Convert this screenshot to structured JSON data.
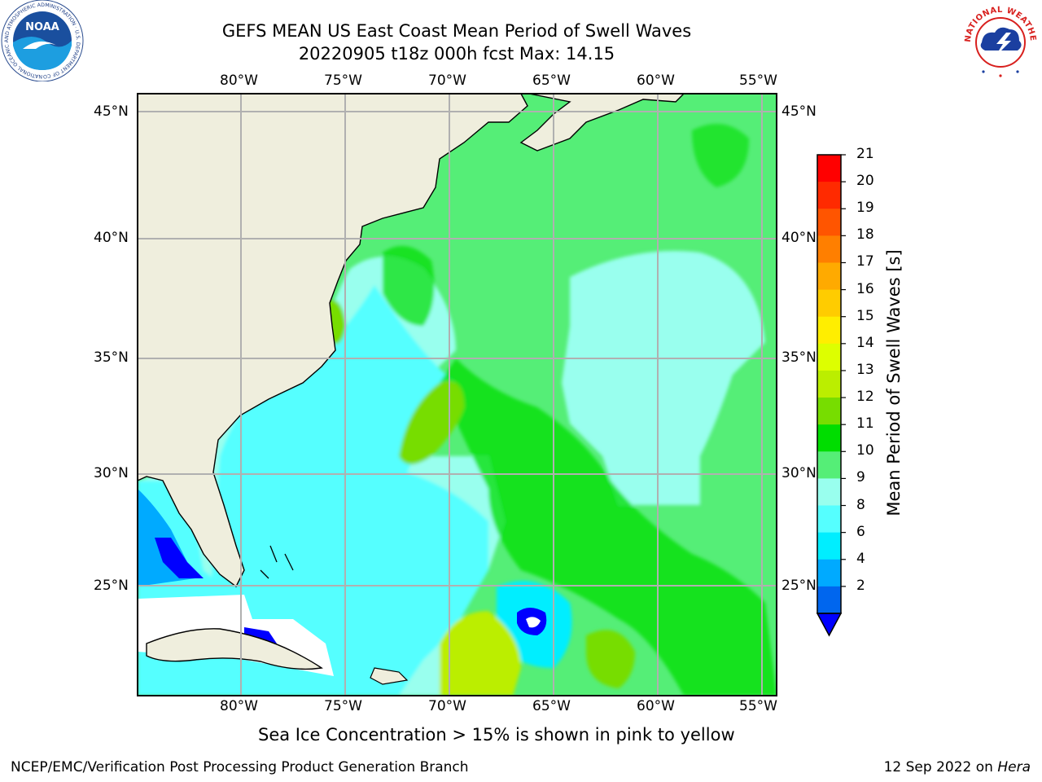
{
  "header": {
    "title_line1": "GEFS MEAN US East Coast Mean Period of Swell Waves",
    "title_line2": "20220905 t18z 000h fcst   Max: 14.15"
  },
  "map": {
    "lon_labels": [
      "80°W",
      "75°W",
      "70°W",
      "65°W",
      "60°W",
      "55°W"
    ],
    "lat_labels": [
      "45°N",
      "40°N",
      "35°N",
      "30°N",
      "25°N"
    ],
    "land_color": "#efeedd",
    "grid_color": "#b0b0b0"
  },
  "colorbar": {
    "title": "Mean Period of Swell Waves [s]",
    "ticks": [
      "21",
      "20",
      "19",
      "18",
      "17",
      "16",
      "15",
      "14",
      "13",
      "12",
      "11",
      "10",
      "9",
      "8",
      "6",
      "4",
      "2"
    ],
    "colors": [
      "#ff0000",
      "#ff2a00",
      "#ff5500",
      "#ff7f00",
      "#ffaa00",
      "#ffcc00",
      "#ffee00",
      "#ddff00",
      "#bbee00",
      "#77dd00",
      "#00dd00",
      "#55ee77",
      "#99ffee",
      "#55ffff",
      "#00eeff",
      "#00aaff",
      "#0066ee"
    ],
    "extend_color": "#0000ff"
  },
  "footer": {
    "note": "Sea Ice Concentration > 15% is shown in pink to yellow",
    "credit": "NCEP/EMC/Verification Post Processing Product Generation Branch",
    "date": "12 Sep 2022 on",
    "host": "Hera"
  },
  "logos": {
    "noaa_text": "NOAA",
    "noaa_ring": "NATIONAL OCEANIC AND ATMOSPHERIC ADMINISTRATION · U.S. DEPARTMENT OF COMMERCE",
    "nws_ring": "NATIONAL WEATHER SERVICE"
  }
}
